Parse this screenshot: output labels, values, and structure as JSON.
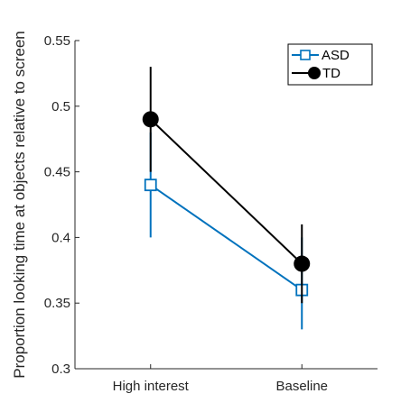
{
  "chart_data": {
    "type": "line",
    "categories": [
      "High interest",
      "Baseline"
    ],
    "ylabel": "Proportion looking time at objects relative to screen",
    "ylim": [
      0.3,
      0.55
    ],
    "yticks": [
      0.3,
      0.35,
      0.4,
      0.45,
      0.5,
      0.55
    ],
    "ytick_labels": [
      "0.3",
      "0.35",
      "0.4",
      "0.45",
      "0.5",
      "0.55"
    ],
    "grid": false,
    "legend_position": "top-right",
    "series": [
      {
        "name": "ASD",
        "values": [
          0.44,
          0.36
        ],
        "error_low": [
          0.4,
          0.33
        ],
        "error_high": [
          0.48,
          0.4
        ],
        "color": "#0072BD",
        "marker": "open-square"
      },
      {
        "name": "TD",
        "values": [
          0.49,
          0.38
        ],
        "error_low": [
          0.45,
          0.35
        ],
        "error_high": [
          0.53,
          0.41
        ],
        "color": "#000000",
        "marker": "filled-circle"
      }
    ]
  }
}
